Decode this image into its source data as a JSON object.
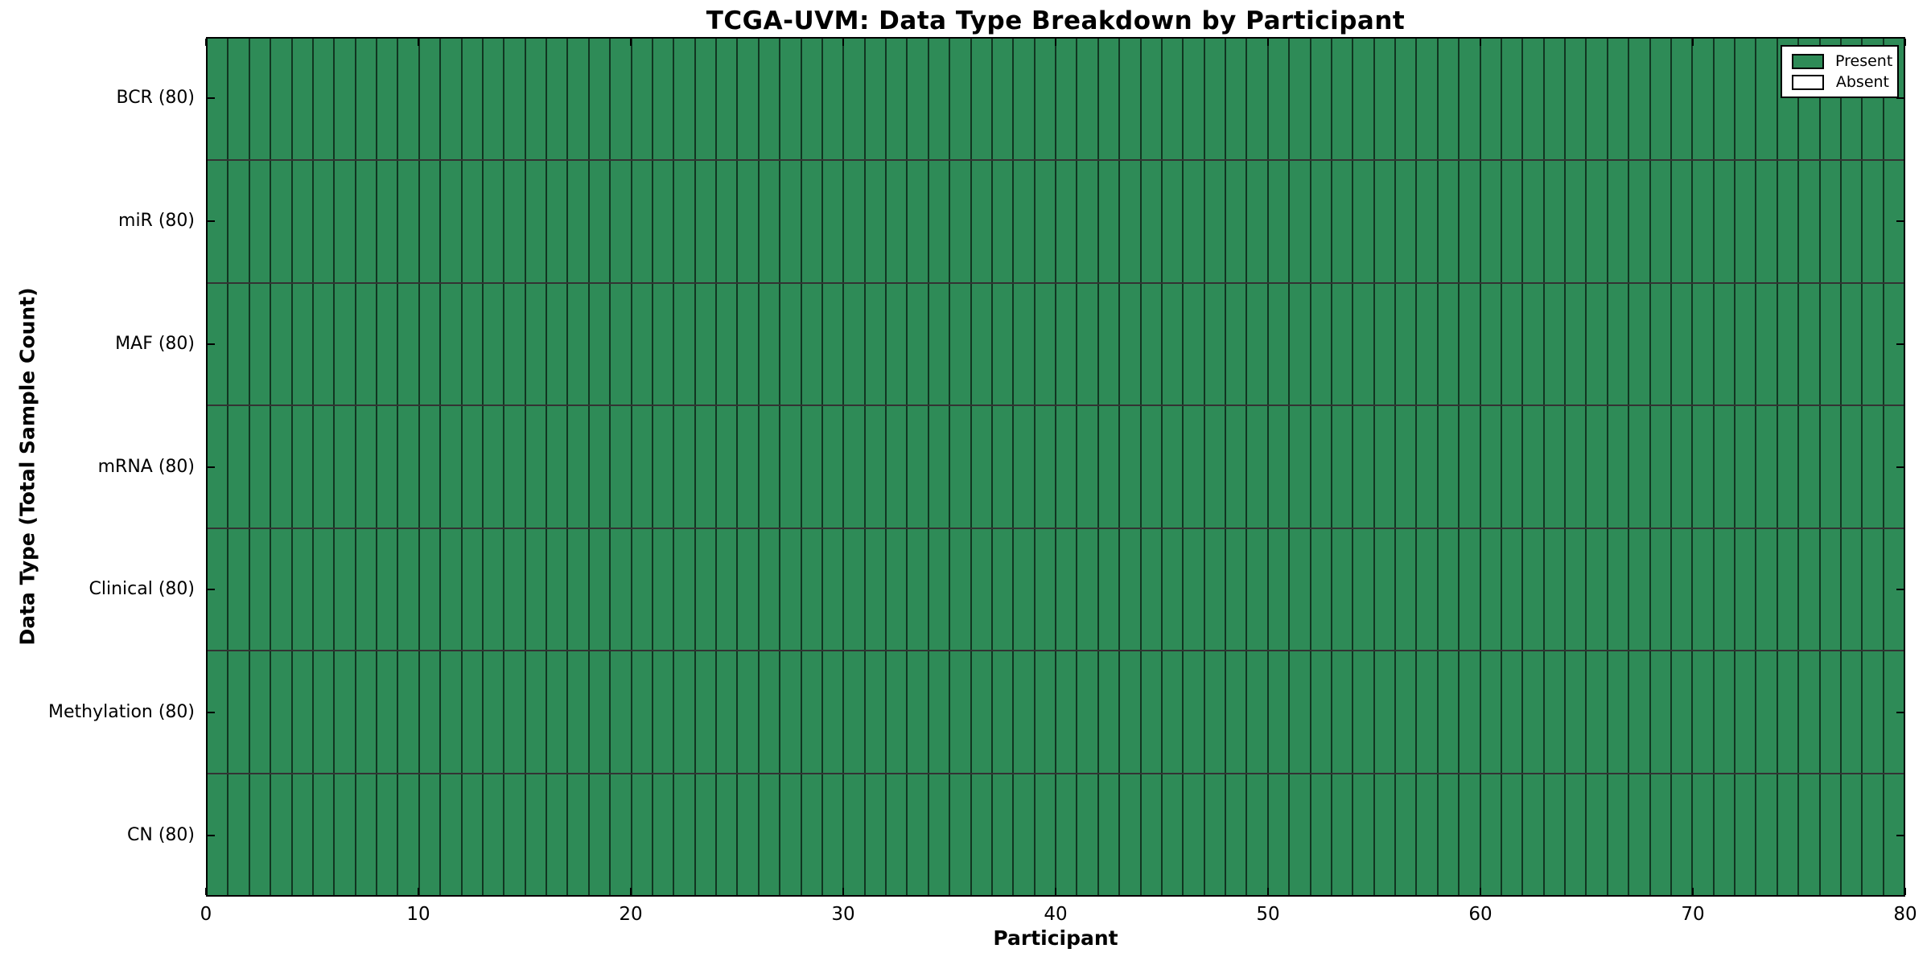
{
  "chart_data": {
    "type": "heatmap",
    "title": "TCGA-UVM: Data Type Breakdown by Participant",
    "xlabel": "Participant",
    "ylabel": "Data Type (Total Sample Count)",
    "xlim": [
      0,
      80
    ],
    "x_ticks": [
      0,
      10,
      20,
      30,
      40,
      50,
      60,
      70,
      80
    ],
    "n_participants": 80,
    "rows": [
      {
        "label": "BCR (80)",
        "data_type": "BCR",
        "total_samples": 80,
        "present_count": 80,
        "absent_count": 0
      },
      {
        "label": "miR (80)",
        "data_type": "miR",
        "total_samples": 80,
        "present_count": 80,
        "absent_count": 0
      },
      {
        "label": "MAF (80)",
        "data_type": "MAF",
        "total_samples": 80,
        "present_count": 80,
        "absent_count": 0
      },
      {
        "label": "mRNA (80)",
        "data_type": "mRNA",
        "total_samples": 80,
        "present_count": 80,
        "absent_count": 0
      },
      {
        "label": "Clinical (80)",
        "data_type": "Clinical",
        "total_samples": 80,
        "present_count": 80,
        "absent_count": 0
      },
      {
        "label": "Methylation (80)",
        "data_type": "Methylation",
        "total_samples": 80,
        "present_count": 80,
        "absent_count": 0
      },
      {
        "label": "CN (80)",
        "data_type": "CN",
        "total_samples": 80,
        "present_count": 80,
        "absent_count": 0
      }
    ],
    "legend": {
      "position": "upper right",
      "entries": [
        {
          "label": "Present",
          "color": "#2E8B57"
        },
        {
          "label": "Absent",
          "color": "#FFFFFF"
        }
      ]
    },
    "colors": {
      "present": "#2E8B57",
      "absent": "#FFFFFF",
      "spine": "#000000",
      "text": "#000000",
      "background": "#FFFFFF"
    },
    "grid": "cell borders",
    "legend_position": "upper right"
  }
}
